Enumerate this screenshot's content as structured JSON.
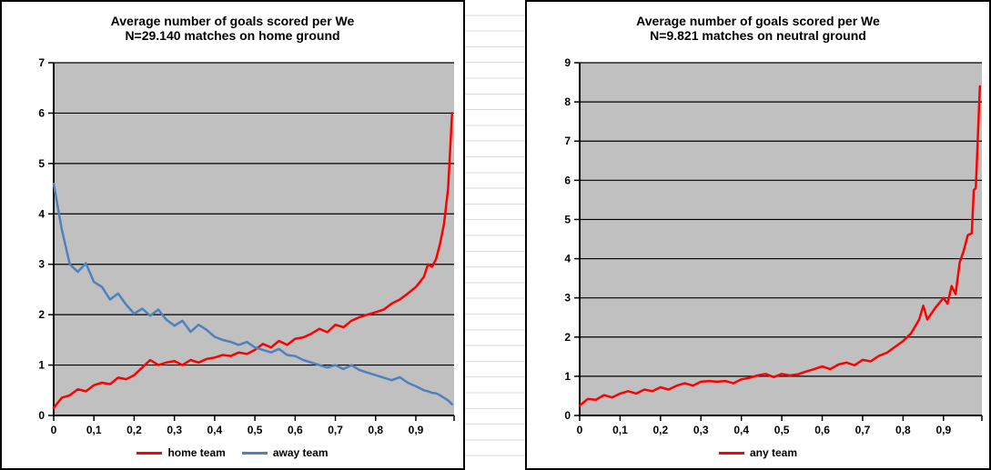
{
  "page": {
    "background": "#ffffff",
    "worksheet_row_line_color": "#d9d9d9"
  },
  "chart_data": [
    {
      "type": "line",
      "title": "Average number of goals scored per We",
      "subtitle": "N=29.140 matches on home ground",
      "xlabel": "",
      "ylabel": "",
      "xlim": [
        0,
        0.995
      ],
      "ylim": [
        0,
        7
      ],
      "x_tick_labels": [
        "0",
        "0,1",
        "0,2",
        "0,3",
        "0,4",
        "0,5",
        "0,6",
        "0,7",
        "0,8",
        "0,9"
      ],
      "x_tick_values": [
        0,
        0.1,
        0.2,
        0.3,
        0.4,
        0.5,
        0.6,
        0.7,
        0.8,
        0.9
      ],
      "y_tick_labels": [
        "0",
        "1",
        "2",
        "3",
        "4",
        "5",
        "6",
        "7"
      ],
      "grid": true,
      "plot_bg": "#c0c0c0",
      "gridline_color": "#000000",
      "legend_position": "bottom",
      "x": [
        0,
        0.02,
        0.04,
        0.06,
        0.08,
        0.1,
        0.12,
        0.14,
        0.16,
        0.18,
        0.2,
        0.22,
        0.24,
        0.26,
        0.28,
        0.3,
        0.32,
        0.34,
        0.36,
        0.38,
        0.4,
        0.42,
        0.44,
        0.46,
        0.48,
        0.5,
        0.52,
        0.54,
        0.56,
        0.58,
        0.6,
        0.62,
        0.64,
        0.66,
        0.68,
        0.7,
        0.72,
        0.74,
        0.76,
        0.78,
        0.8,
        0.82,
        0.84,
        0.86,
        0.88,
        0.9,
        0.92,
        0.93,
        0.94,
        0.95,
        0.96,
        0.97,
        0.98,
        0.99
      ],
      "series": [
        {
          "name": "home team",
          "color": "#ff0000",
          "values": [
            0.15,
            0.35,
            0.4,
            0.52,
            0.48,
            0.6,
            0.65,
            0.62,
            0.75,
            0.72,
            0.8,
            0.95,
            1.1,
            1,
            1.05,
            1.08,
            1,
            1.1,
            1.05,
            1.12,
            1.15,
            1.2,
            1.18,
            1.25,
            1.22,
            1.3,
            1.42,
            1.35,
            1.48,
            1.4,
            1.52,
            1.55,
            1.62,
            1.72,
            1.65,
            1.8,
            1.75,
            1.88,
            1.95,
            2,
            2.05,
            2.1,
            2.22,
            2.3,
            2.42,
            2.55,
            2.75,
            3,
            2.95,
            3.1,
            3.4,
            3.8,
            4.5,
            6
          ]
        },
        {
          "name": "away team",
          "color": "#4f81bd",
          "values": [
            4.6,
            3.7,
            3,
            2.85,
            3.02,
            2.65,
            2.55,
            2.3,
            2.42,
            2.2,
            2.02,
            2.12,
            1.98,
            2.1,
            1.9,
            1.78,
            1.88,
            1.66,
            1.8,
            1.7,
            1.56,
            1.5,
            1.46,
            1.4,
            1.46,
            1.35,
            1.3,
            1.25,
            1.32,
            1.2,
            1.18,
            1.1,
            1.05,
            1,
            0.95,
            1,
            0.92,
            1,
            0.9,
            0.85,
            0.8,
            0.75,
            0.7,
            0.76,
            0.65,
            0.58,
            0.5,
            0.48,
            0.45,
            0.44,
            0.4,
            0.35,
            0.3,
            0.22
          ]
        }
      ]
    },
    {
      "type": "line",
      "title": "Average number of goals scored per We",
      "subtitle": "N=9.821 matches on neutral ground",
      "xlabel": "",
      "ylabel": "",
      "xlim": [
        0,
        0.995
      ],
      "ylim": [
        0,
        9
      ],
      "x_tick_labels": [
        "0",
        "0,1",
        "0,2",
        "0,3",
        "0,4",
        "0,5",
        "0,6",
        "0,7",
        "0,8",
        "0,9"
      ],
      "x_tick_values": [
        0,
        0.1,
        0.2,
        0.3,
        0.4,
        0.5,
        0.6,
        0.7,
        0.8,
        0.9
      ],
      "y_tick_labels": [
        "0",
        "1",
        "2",
        "3",
        "4",
        "5",
        "6",
        "7",
        "8",
        "9"
      ],
      "grid": true,
      "plot_bg": "#c0c0c0",
      "gridline_color": "#000000",
      "legend_position": "bottom",
      "x": [
        0,
        0.02,
        0.04,
        0.06,
        0.08,
        0.1,
        0.12,
        0.14,
        0.16,
        0.18,
        0.2,
        0.22,
        0.24,
        0.26,
        0.28,
        0.3,
        0.32,
        0.34,
        0.36,
        0.38,
        0.4,
        0.42,
        0.44,
        0.46,
        0.48,
        0.5,
        0.52,
        0.54,
        0.56,
        0.58,
        0.6,
        0.62,
        0.64,
        0.66,
        0.68,
        0.7,
        0.72,
        0.74,
        0.76,
        0.78,
        0.8,
        0.82,
        0.84,
        0.85,
        0.86,
        0.88,
        0.9,
        0.91,
        0.92,
        0.93,
        0.94,
        0.95,
        0.96,
        0.97,
        0.975,
        0.98,
        0.99
      ],
      "series": [
        {
          "name": "any team",
          "color": "#ff0000",
          "values": [
            0.25,
            0.42,
            0.4,
            0.52,
            0.46,
            0.56,
            0.62,
            0.56,
            0.66,
            0.62,
            0.72,
            0.66,
            0.76,
            0.82,
            0.76,
            0.86,
            0.88,
            0.86,
            0.88,
            0.82,
            0.92,
            0.96,
            1.02,
            1.06,
            0.98,
            1.06,
            1.02,
            1.05,
            1.12,
            1.18,
            1.25,
            1.18,
            1.3,
            1.35,
            1.28,
            1.42,
            1.38,
            1.52,
            1.6,
            1.75,
            1.9,
            2.1,
            2.45,
            2.8,
            2.45,
            2.75,
            3,
            2.85,
            3.3,
            3.1,
            3.9,
            4.2,
            4.6,
            4.65,
            5.75,
            5.8,
            8.4
          ]
        }
      ]
    }
  ]
}
